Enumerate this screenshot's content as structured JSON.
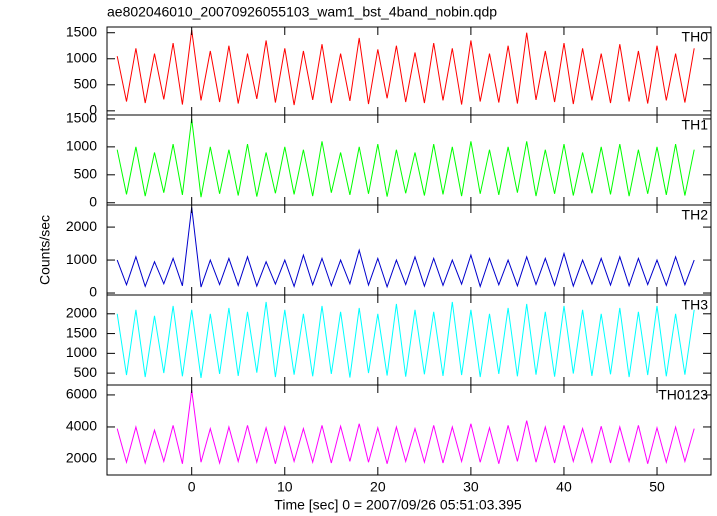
{
  "chart_data": [
    {
      "type": "line",
      "title": "ae802046010_20070926055103_wam1_bst_4band_nobin.qdp",
      "x": [
        -8,
        -7,
        -6,
        -5,
        -4,
        -3,
        -2,
        -1,
        0,
        1,
        2,
        3,
        4,
        5,
        6,
        7,
        8,
        9,
        10,
        11,
        12,
        13,
        14,
        15,
        16,
        17,
        18,
        19,
        20,
        21,
        22,
        23,
        24,
        25,
        26,
        27,
        28,
        29,
        30,
        31,
        32,
        33,
        34,
        35,
        36,
        37,
        38,
        39,
        40,
        41,
        42,
        43,
        44,
        45,
        46,
        47,
        48,
        49,
        50,
        51,
        52,
        53,
        54
      ],
      "xlim": [
        -9.1,
        55.8
      ],
      "ylim": [
        -80,
        1610
      ],
      "yticks": [
        0,
        500,
        1000,
        1500
      ],
      "series": [
        {
          "name": "TH0",
          "color": "#ff0000",
          "values": [
            1050,
            180,
            1200,
            150,
            1100,
            220,
            1300,
            120,
            1550,
            200,
            1150,
            170,
            1250,
            140,
            1100,
            230,
            1350,
            160,
            1200,
            110,
            1150,
            210,
            1280,
            150,
            1100,
            190,
            1400,
            130,
            1180,
            240,
            1250,
            170,
            1120,
            150,
            1300,
            200,
            1200,
            120,
            1350,
            180,
            1100,
            160,
            1250,
            140,
            1500,
            210,
            1150,
            170,
            1300,
            130,
            1200,
            200,
            1100,
            150,
            1280,
            180,
            1150,
            140,
            1250,
            200,
            1100,
            160,
            1200
          ]
        }
      ]
    },
    {
      "type": "line",
      "x": [
        -8,
        -7,
        -6,
        -5,
        -4,
        -3,
        -2,
        -1,
        0,
        1,
        2,
        3,
        4,
        5,
        6,
        7,
        8,
        9,
        10,
        11,
        12,
        13,
        14,
        15,
        16,
        17,
        18,
        19,
        20,
        21,
        22,
        23,
        24,
        25,
        26,
        27,
        28,
        29,
        30,
        31,
        32,
        33,
        34,
        35,
        36,
        37,
        38,
        39,
        40,
        41,
        42,
        43,
        44,
        45,
        46,
        47,
        48,
        49,
        50,
        51,
        52,
        53,
        54
      ],
      "xlim": [
        -9.1,
        55.8
      ],
      "ylim": [
        -40,
        1570
      ],
      "yticks": [
        0,
        500,
        1000,
        1500
      ],
      "series": [
        {
          "name": "TH1",
          "color": "#00ff00",
          "values": [
            950,
            150,
            1000,
            120,
            900,
            180,
            1050,
            140,
            1500,
            100,
            1000,
            160,
            950,
            130,
            1050,
            110,
            900,
            170,
            1000,
            150,
            950,
            120,
            1100,
            180,
            900,
            140,
            1000,
            160,
            1050,
            110,
            950,
            170,
            900,
            130,
            1050,
            150,
            1000,
            120,
            1100,
            160,
            950,
            140,
            1000,
            180,
            1100,
            120,
            950,
            160,
            1050,
            130,
            900,
            170,
            1000,
            150,
            1050,
            120,
            950,
            160,
            1000,
            140,
            1050,
            130,
            950
          ]
        }
      ]
    },
    {
      "type": "line",
      "ylabel": "Counts/sec",
      "x": [
        -8,
        -7,
        -6,
        -5,
        -4,
        -3,
        -2,
        -1,
        0,
        1,
        2,
        3,
        4,
        5,
        6,
        7,
        8,
        9,
        10,
        11,
        12,
        13,
        14,
        15,
        16,
        17,
        18,
        19,
        20,
        21,
        22,
        23,
        24,
        25,
        26,
        27,
        28,
        29,
        30,
        31,
        32,
        33,
        34,
        35,
        36,
        37,
        38,
        39,
        40,
        41,
        42,
        43,
        44,
        45,
        46,
        47,
        48,
        49,
        50,
        51,
        52,
        53,
        54
      ],
      "xlim": [
        -9.1,
        55.8
      ],
      "ylim": [
        -60,
        2670
      ],
      "yticks": [
        0,
        1000,
        2000
      ],
      "series": [
        {
          "name": "TH2",
          "color": "#0000cc",
          "values": [
            1000,
            250,
            1100,
            200,
            950,
            280,
            1050,
            220,
            2600,
            180,
            1000,
            260,
            1050,
            230,
            1100,
            210,
            950,
            270,
            1000,
            200,
            1150,
            250,
            1050,
            220,
            1000,
            280,
            1300,
            240,
            1050,
            190,
            1000,
            260,
            1100,
            210,
            1050,
            230,
            1000,
            270,
            1150,
            200,
            1050,
            250,
            1000,
            220,
            1100,
            260,
            1050,
            230,
            1200,
            210,
            1000,
            270,
            1050,
            240,
            1100,
            220,
            1050,
            260,
            1000,
            230,
            1100,
            250,
            1000
          ]
        }
      ]
    },
    {
      "type": "line",
      "x": [
        -8,
        -7,
        -6,
        -5,
        -4,
        -3,
        -2,
        -1,
        0,
        1,
        2,
        3,
        4,
        5,
        6,
        7,
        8,
        9,
        10,
        11,
        12,
        13,
        14,
        15,
        16,
        17,
        18,
        19,
        20,
        21,
        22,
        23,
        24,
        25,
        26,
        27,
        28,
        29,
        30,
        31,
        32,
        33,
        34,
        35,
        36,
        37,
        38,
        39,
        40,
        41,
        42,
        43,
        44,
        45,
        46,
        47,
        48,
        49,
        50,
        51,
        52,
        53,
        54
      ],
      "xlim": [
        -9.1,
        55.8
      ],
      "ylim": [
        200,
        2475
      ],
      "yticks": [
        500,
        1000,
        1500,
        2000
      ],
      "series": [
        {
          "name": "TH3",
          "color": "#00ffff",
          "values": [
            2000,
            450,
            2100,
            400,
            1950,
            500,
            2200,
            420,
            2100,
            380,
            2000,
            480,
            2150,
            430,
            2050,
            510,
            2300,
            400,
            2100,
            460,
            2000,
            420,
            2200,
            480,
            2050,
            390,
            2150,
            500,
            2000,
            440,
            2250,
            410,
            2100,
            470,
            2050,
            430,
            2300,
            450,
            2100,
            400,
            2000,
            480,
            2150,
            420,
            2250,
            460,
            2050,
            410,
            2200,
            490,
            2100,
            430,
            2000,
            470,
            2150,
            400,
            2050,
            450,
            2200,
            420,
            2000,
            460,
            2100
          ]
        }
      ]
    },
    {
      "type": "line",
      "xlabel": "Time [sec] 0 = 2007/09/26 05:51:03.395",
      "x": [
        -8,
        -7,
        -6,
        -5,
        -4,
        -3,
        -2,
        -1,
        0,
        1,
        2,
        3,
        4,
        5,
        6,
        7,
        8,
        9,
        10,
        11,
        12,
        13,
        14,
        15,
        16,
        17,
        18,
        19,
        20,
        21,
        22,
        23,
        24,
        25,
        26,
        27,
        28,
        29,
        30,
        31,
        32,
        33,
        34,
        35,
        36,
        37,
        38,
        39,
        40,
        41,
        42,
        43,
        44,
        45,
        46,
        47,
        48,
        49,
        50,
        51,
        52,
        53,
        54
      ],
      "xlim": [
        -9.1,
        55.8
      ],
      "xticks": [
        0,
        10,
        20,
        30,
        40,
        50
      ],
      "ylim": [
        1000,
        6620
      ],
      "yticks": [
        2000,
        4000,
        6000
      ],
      "series": [
        {
          "name": "TH0123",
          "color": "#ff00ff",
          "values": [
            3900,
            1800,
            4000,
            1750,
            3800,
            1850,
            4100,
            1700,
            6300,
            1800,
            3900,
            1750,
            4000,
            1850,
            4100,
            1800,
            3950,
            1700,
            4000,
            1850,
            3900,
            1800,
            4100,
            1750,
            4050,
            1850,
            4200,
            1800,
            3950,
            1700,
            4000,
            1850,
            3900,
            1800,
            4100,
            1750,
            4000,
            1850,
            4200,
            1800,
            3950,
            1700,
            4100,
            1850,
            4400,
            1800,
            4000,
            1750,
            4100,
            1850,
            3900,
            1800,
            4050,
            1750,
            4000,
            1850,
            4100,
            1700,
            3950,
            1800,
            4000,
            1850,
            3900
          ]
        }
      ]
    }
  ]
}
